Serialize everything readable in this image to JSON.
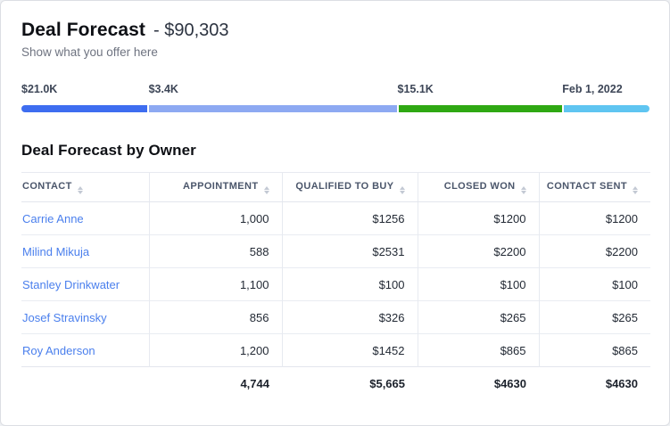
{
  "header": {
    "title": "Deal Forecast",
    "title_suffix": "- $90,303",
    "subtitle": "Show what you offer here"
  },
  "progress": {
    "segments": [
      {
        "label": "$21.0K",
        "color": "#3e6df0",
        "percent": 20.0
      },
      {
        "label": "$3.4K",
        "color": "#8da9f2",
        "percent": 39.4
      },
      {
        "label": "$15.1K",
        "color": "#2fa813",
        "percent": 26.0
      },
      {
        "label": "Feb 1, 2022",
        "color": "#5fc5f1",
        "percent": 13.6
      }
    ]
  },
  "table": {
    "title": "Deal Forecast by Owner",
    "columns": [
      "Contact",
      "Appointment",
      "Qualified to Buy",
      "Closed Won",
      "Contact Sent"
    ],
    "rows": [
      {
        "contact": "Carrie Anne",
        "values": [
          "1,000",
          "$1256",
          "$1200",
          "$1200"
        ]
      },
      {
        "contact": "Milind Mikuja",
        "values": [
          "588",
          "$2531",
          "$2200",
          "$2200"
        ]
      },
      {
        "contact": "Stanley Drinkwater",
        "values": [
          "1,100",
          "$100",
          "$100",
          "$100"
        ]
      },
      {
        "contact": "Josef Stravinsky",
        "values": [
          "856",
          "$326",
          "$265",
          "$265"
        ]
      },
      {
        "contact": "Roy Anderson",
        "values": [
          "1,200",
          "$1452",
          "$865",
          "$865"
        ]
      }
    ],
    "totals": [
      "4,744",
      "$5,665",
      "$4630",
      "$4630"
    ]
  }
}
